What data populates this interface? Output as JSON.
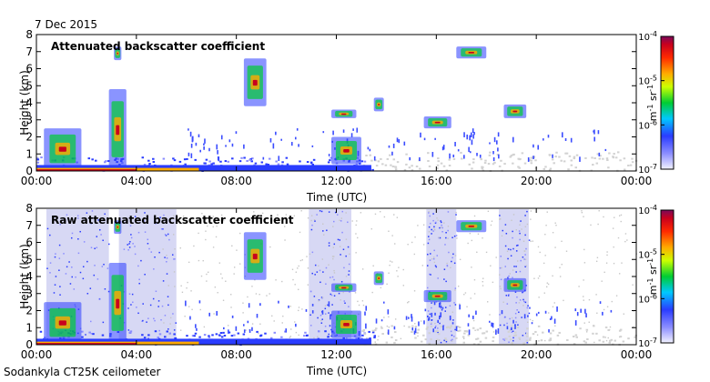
{
  "figure": {
    "date": "7 Dec 2015",
    "footer": "Sodankyla CT25K ceilometer"
  },
  "chart_data": [
    {
      "type": "heatmap",
      "title": "Attenuated backscatter coefficient",
      "xlabel": "Time (UTC)",
      "ylabel": "Height (km)",
      "x_ticks": [
        "00:00",
        "04:00",
        "08:00",
        "12:00",
        "16:00",
        "20:00",
        "00:00"
      ],
      "x_range_hours": [
        0,
        24
      ],
      "y_ticks": [
        0,
        1,
        2,
        3,
        4,
        5,
        6,
        7,
        8
      ],
      "ylim": [
        0,
        8
      ],
      "colorbar": {
        "label": "m-1 sr-1",
        "scale": "log",
        "range": [
          1e-07,
          0.0001
        ],
        "ticks": [
          "10-7",
          "10-6",
          "10-5",
          "10-4"
        ]
      },
      "features": [
        {
          "kind": "surface-layer",
          "t_start": 0,
          "t_end": 13.5,
          "z_top": 0.8
        },
        {
          "kind": "cloud",
          "t_start": 0.3,
          "t_end": 1.8,
          "z_bottom": 0.1,
          "z_top": 2.5
        },
        {
          "kind": "cloud",
          "t_start": 2.9,
          "t_end": 3.6,
          "z_bottom": 0.1,
          "z_top": 4.8
        },
        {
          "kind": "cloud",
          "t_start": 3.1,
          "t_end": 3.4,
          "z_bottom": 6.5,
          "z_top": 7.3
        },
        {
          "kind": "cloud",
          "t_start": 8.3,
          "t_end": 9.2,
          "z_bottom": 3.8,
          "z_top": 6.6
        },
        {
          "kind": "cloud",
          "t_start": 11.8,
          "t_end": 13.0,
          "z_bottom": 0.4,
          "z_top": 2.0
        },
        {
          "kind": "cloud",
          "t_start": 11.8,
          "t_end": 12.8,
          "z_bottom": 3.1,
          "z_top": 3.6
        },
        {
          "kind": "cloud",
          "t_start": 13.5,
          "t_end": 13.9,
          "z_bottom": 3.5,
          "z_top": 4.3
        },
        {
          "kind": "cloud",
          "t_start": 15.5,
          "t_end": 16.6,
          "z_bottom": 2.5,
          "z_top": 3.2
        },
        {
          "kind": "cloud",
          "t_start": 16.8,
          "t_end": 18.0,
          "z_bottom": 6.6,
          "z_top": 7.3
        },
        {
          "kind": "cloud",
          "t_start": 18.7,
          "t_end": 19.6,
          "z_bottom": 3.1,
          "z_top": 3.9
        }
      ]
    },
    {
      "type": "heatmap",
      "title": "Raw attenuated backscatter coefficient",
      "xlabel": "Time (UTC)",
      "ylabel": "Height (km)",
      "x_ticks": [
        "00:00",
        "04:00",
        "08:00",
        "12:00",
        "16:00",
        "20:00",
        "00:00"
      ],
      "x_range_hours": [
        0,
        24
      ],
      "y_ticks": [
        0,
        1,
        2,
        3,
        4,
        5,
        6,
        7,
        8
      ],
      "ylim": [
        0,
        8
      ],
      "colorbar": {
        "label": "m-1 sr-1",
        "scale": "log",
        "range": [
          1e-07,
          0.0001
        ],
        "ticks": [
          "10-7",
          "10-6",
          "10-5",
          "10-4"
        ]
      },
      "noise_columns": [
        {
          "t_start": 0.4,
          "t_end": 2.9
        },
        {
          "t_start": 3.3,
          "t_end": 5.6
        },
        {
          "t_start": 10.9,
          "t_end": 12.6
        },
        {
          "t_start": 15.6,
          "t_end": 16.8
        },
        {
          "t_start": 18.5,
          "t_end": 19.7
        }
      ]
    }
  ]
}
